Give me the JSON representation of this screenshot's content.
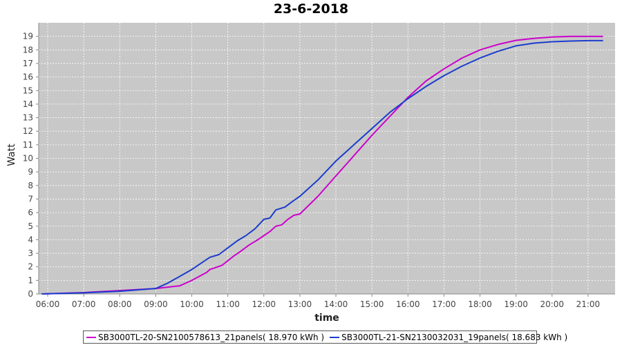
{
  "chart_data": {
    "type": "line",
    "title": "23-6-2018",
    "xlabel": "time",
    "ylabel": "Watt",
    "x_ticks": [
      "06:00",
      "07:00",
      "08:00",
      "09:00",
      "10:00",
      "11:00",
      "12:00",
      "13:00",
      "14:00",
      "15:00",
      "16:00",
      "17:00",
      "18:00",
      "19:00",
      "20:00",
      "21:00"
    ],
    "xlim": [
      "05:45",
      "21:45"
    ],
    "ylim": [
      0,
      20
    ],
    "y_ticks": [
      0,
      1,
      2,
      3,
      4,
      5,
      6,
      7,
      8,
      9,
      10,
      11,
      12,
      13,
      14,
      15,
      16,
      17,
      18,
      19
    ],
    "grid": true,
    "legend_position": "bottom",
    "series": [
      {
        "name": "SB3000TL-20-SN2100578613_21panels( 18.970 kWh )",
        "color": "#cc00cc",
        "points": [
          [
            "05:50",
            0.0
          ],
          [
            "07:00",
            0.1
          ],
          [
            "08:00",
            0.25
          ],
          [
            "09:00",
            0.4
          ],
          [
            "09:40",
            0.6
          ],
          [
            "10:00",
            1.0
          ],
          [
            "10:25",
            1.6
          ],
          [
            "10:30",
            1.8
          ],
          [
            "10:50",
            2.1
          ],
          [
            "11:10",
            2.8
          ],
          [
            "11:20",
            3.1
          ],
          [
            "11:35",
            3.6
          ],
          [
            "11:50",
            4.0
          ],
          [
            "12:00",
            4.3
          ],
          [
            "12:10",
            4.6
          ],
          [
            "12:20",
            5.0
          ],
          [
            "12:30",
            5.1
          ],
          [
            "12:40",
            5.5
          ],
          [
            "12:50",
            5.8
          ],
          [
            "13:00",
            5.9
          ],
          [
            "13:30",
            7.2
          ],
          [
            "14:00",
            8.7
          ],
          [
            "14:30",
            10.2
          ],
          [
            "15:00",
            11.7
          ],
          [
            "15:30",
            13.1
          ],
          [
            "16:00",
            14.5
          ],
          [
            "16:30",
            15.7
          ],
          [
            "17:00",
            16.6
          ],
          [
            "17:30",
            17.4
          ],
          [
            "18:00",
            18.0
          ],
          [
            "18:30",
            18.4
          ],
          [
            "19:00",
            18.7
          ],
          [
            "19:30",
            18.85
          ],
          [
            "20:00",
            18.95
          ],
          [
            "20:30",
            19.0
          ],
          [
            "21:00",
            19.0
          ],
          [
            "21:25",
            19.0
          ]
        ]
      },
      {
        "name": "SB3000TL-21-SN2130032031_19panels( 18.683 kWh )",
        "color": "#1a3ccc",
        "points": [
          [
            "05:50",
            0.0
          ],
          [
            "07:00",
            0.08
          ],
          [
            "08:00",
            0.2
          ],
          [
            "09:00",
            0.4
          ],
          [
            "09:20",
            0.8
          ],
          [
            "09:40",
            1.3
          ],
          [
            "10:00",
            1.8
          ],
          [
            "10:20",
            2.4
          ],
          [
            "10:30",
            2.7
          ],
          [
            "10:45",
            2.9
          ],
          [
            "11:00",
            3.4
          ],
          [
            "11:15",
            3.9
          ],
          [
            "11:30",
            4.3
          ],
          [
            "11:45",
            4.8
          ],
          [
            "12:00",
            5.5
          ],
          [
            "12:10",
            5.6
          ],
          [
            "12:20",
            6.2
          ],
          [
            "12:35",
            6.4
          ],
          [
            "12:50",
            6.9
          ],
          [
            "13:00",
            7.2
          ],
          [
            "13:30",
            8.4
          ],
          [
            "14:00",
            9.8
          ],
          [
            "14:30",
            11.0
          ],
          [
            "15:00",
            12.2
          ],
          [
            "15:30",
            13.4
          ],
          [
            "16:00",
            14.4
          ],
          [
            "16:30",
            15.3
          ],
          [
            "17:00",
            16.1
          ],
          [
            "17:30",
            16.8
          ],
          [
            "18:00",
            17.4
          ],
          [
            "18:30",
            17.9
          ],
          [
            "19:00",
            18.3
          ],
          [
            "19:30",
            18.5
          ],
          [
            "20:00",
            18.6
          ],
          [
            "20:30",
            18.65
          ],
          [
            "21:00",
            18.68
          ],
          [
            "21:25",
            18.68
          ]
        ]
      }
    ]
  }
}
